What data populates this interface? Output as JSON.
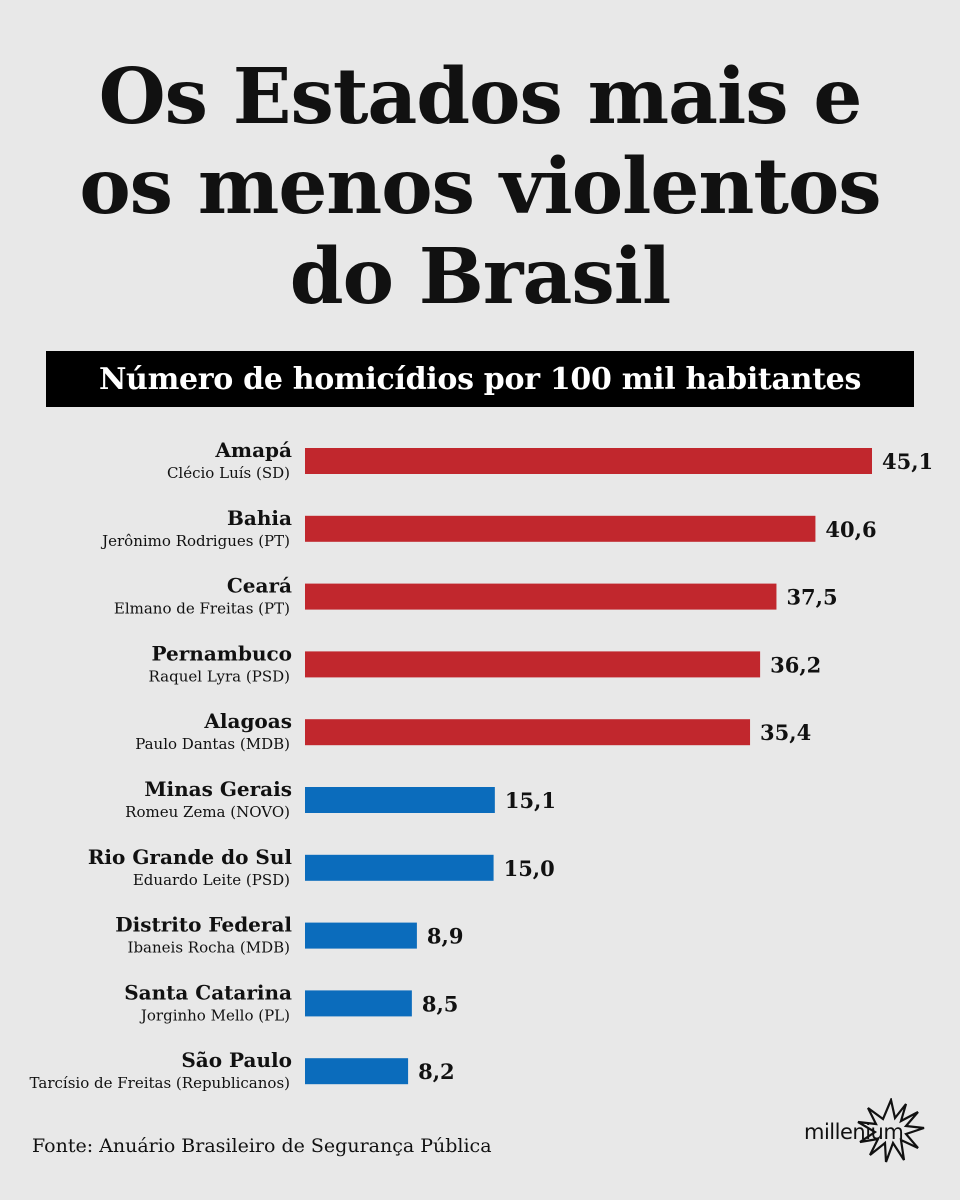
{
  "title_lines": [
    "Os Estados mais e",
    "os menos violentos",
    "do Brasil"
  ],
  "subtitle": "Número de homicídios por 100 mil habitantes",
  "source": "Fonte: Anuário Brasileiro de Segurança Pública",
  "brand": "millenium",
  "colors": {
    "high": "#c1272d",
    "low": "#0b6cbc",
    "background": "#e8e8e8"
  },
  "chart_data": {
    "type": "bar",
    "orientation": "horizontal",
    "title": "Os Estados mais e os menos violentos do Brasil",
    "subtitle": "Número de homicídios por 100 mil habitantes",
    "xlim": [
      0,
      45.1
    ],
    "grid": false,
    "legend": "none",
    "categories": [
      "Amapá",
      "Bahia",
      "Ceará",
      "Pernambuco",
      "Alagoas",
      "Minas Gerais",
      "Rio Grande do Sul",
      "Distrito Federal",
      "Santa Catarina",
      "São Paulo"
    ],
    "governors": [
      "Clécio Luís (SD)",
      "Jerônimo Rodrigues (PT)",
      "Elmano de Freitas (PT)",
      "Raquel Lyra (PSD)",
      "Paulo Dantas (MDB)",
      "Romeu Zema (NOVO)",
      "Eduardo Leite (PSD)",
      "Ibaneis Rocha (MDB)",
      "Jorginho Mello (PL)",
      "Tarcísio de Freitas (Republicanos)"
    ],
    "values": [
      45.1,
      40.6,
      37.5,
      36.2,
      35.4,
      15.1,
      15.0,
      8.9,
      8.5,
      8.2
    ],
    "value_labels": [
      "45,1",
      "40,6",
      "37,5",
      "36,2",
      "35,4",
      "15,1",
      "15,0",
      "8,9",
      "8,5",
      "8,2"
    ],
    "groups": [
      "high",
      "high",
      "high",
      "high",
      "high",
      "low",
      "low",
      "low",
      "low",
      "low"
    ]
  }
}
